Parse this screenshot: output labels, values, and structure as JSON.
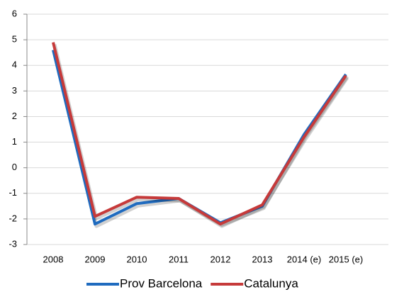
{
  "chart_data": {
    "type": "line",
    "categories": [
      "2008",
      "2009",
      "2010",
      "2011",
      "2012",
      "2013",
      "2014 (e)",
      "2015 (e)"
    ],
    "series": [
      {
        "name": "Prov Barcelona",
        "color": "#1f6bbf",
        "values": [
          4.6,
          -2.2,
          -1.4,
          -1.2,
          -2.15,
          -1.5,
          1.3,
          3.65
        ]
      },
      {
        "name": "Catalunya",
        "color": "#c63a3a",
        "values": [
          4.9,
          -1.9,
          -1.15,
          -1.2,
          -2.2,
          -1.45,
          1.2,
          3.6
        ]
      }
    ],
    "ylim": [
      -3,
      6
    ],
    "yticks": [
      -3,
      -2,
      -1,
      0,
      1,
      2,
      3,
      4,
      5,
      6
    ],
    "grid": true,
    "legend": "bottom"
  }
}
